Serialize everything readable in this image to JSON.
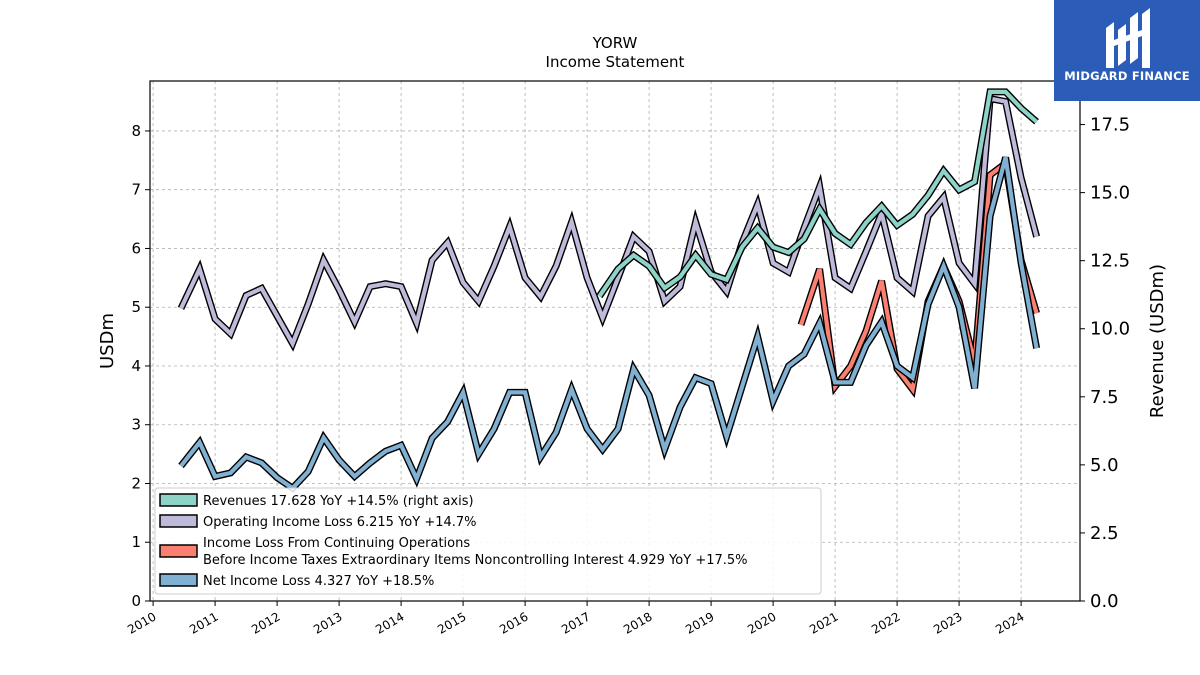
{
  "chart_data": {
    "type": "line",
    "title": "YORW",
    "subtitle": "Income Statement",
    "ylabel": "USDm",
    "ylabel_right": "Revenue (USDm)",
    "ylim": [
      0,
      8.85
    ],
    "ylim_right": [
      0,
      19.1
    ],
    "xlim": [
      2009.95,
      2024.95
    ],
    "x_ticks": [
      "2010",
      "2011",
      "2012",
      "2013",
      "2014",
      "2015",
      "2016",
      "2017",
      "2018",
      "2019",
      "2020",
      "2021",
      "2022",
      "2023",
      "2024"
    ],
    "y_ticks": [
      "0",
      "1",
      "2",
      "3",
      "4",
      "5",
      "6",
      "7",
      "8"
    ],
    "y_ticks_right": [
      "0.0",
      "2.5",
      "5.0",
      "7.5",
      "10.0",
      "12.5",
      "15.0",
      "17.5"
    ],
    "grid": true,
    "legend_position": "lower-left",
    "series": [
      {
        "name": "Revenues",
        "legend": "Revenues  17.628 YoY +14.5% (right axis)",
        "axis": "right",
        "color": "#8dd3c7",
        "points": [
          [
            2017.2,
            11.2
          ],
          [
            2017.5,
            12.2
          ],
          [
            2017.75,
            12.7
          ],
          [
            2018.0,
            12.3
          ],
          [
            2018.25,
            11.5
          ],
          [
            2018.5,
            11.9
          ],
          [
            2018.75,
            12.7
          ],
          [
            2019.0,
            12.0
          ],
          [
            2019.25,
            11.8
          ],
          [
            2019.5,
            13.0
          ],
          [
            2019.75,
            13.7
          ],
          [
            2020.0,
            13.0
          ],
          [
            2020.25,
            12.8
          ],
          [
            2020.5,
            13.3
          ],
          [
            2020.75,
            14.4
          ],
          [
            2021.0,
            13.5
          ],
          [
            2021.25,
            13.1
          ],
          [
            2021.5,
            13.9
          ],
          [
            2021.75,
            14.5
          ],
          [
            2022.0,
            13.8
          ],
          [
            2022.25,
            14.2
          ],
          [
            2022.5,
            14.9
          ],
          [
            2022.75,
            15.8
          ],
          [
            2023.0,
            15.1
          ],
          [
            2023.25,
            15.4
          ],
          [
            2023.5,
            18.7
          ],
          [
            2023.75,
            18.7
          ],
          [
            2024.0,
            18.1
          ],
          [
            2024.25,
            17.6
          ]
        ]
      },
      {
        "name": "Operating Income Loss",
        "legend": "Operating Income Loss  6.215 YoY +14.7%",
        "axis": "left",
        "color": "#bebada",
        "points": [
          [
            2010.45,
            4.98
          ],
          [
            2010.75,
            5.65
          ],
          [
            2011.0,
            4.8
          ],
          [
            2011.25,
            4.55
          ],
          [
            2011.5,
            5.2
          ],
          [
            2011.75,
            5.32
          ],
          [
            2012.0,
            4.85
          ],
          [
            2012.25,
            4.38
          ],
          [
            2012.5,
            5.05
          ],
          [
            2012.75,
            5.8
          ],
          [
            2013.0,
            5.3
          ],
          [
            2013.25,
            4.75
          ],
          [
            2013.5,
            5.35
          ],
          [
            2013.75,
            5.4
          ],
          [
            2014.0,
            5.35
          ],
          [
            2014.25,
            4.73
          ],
          [
            2014.5,
            5.8
          ],
          [
            2014.75,
            6.1
          ],
          [
            2015.0,
            5.42
          ],
          [
            2015.25,
            5.1
          ],
          [
            2015.5,
            5.7
          ],
          [
            2015.75,
            6.37
          ],
          [
            2016.0,
            5.5
          ],
          [
            2016.25,
            5.18
          ],
          [
            2016.5,
            5.7
          ],
          [
            2016.75,
            6.45
          ],
          [
            2017.0,
            5.5
          ],
          [
            2017.25,
            4.82
          ],
          [
            2017.5,
            5.5
          ],
          [
            2017.75,
            6.2
          ],
          [
            2018.0,
            5.95
          ],
          [
            2018.25,
            5.1
          ],
          [
            2018.5,
            5.35
          ],
          [
            2018.75,
            6.45
          ],
          [
            2019.0,
            5.6
          ],
          [
            2019.25,
            5.27
          ],
          [
            2019.5,
            6.1
          ],
          [
            2019.75,
            6.75
          ],
          [
            2020.0,
            5.75
          ],
          [
            2020.25,
            5.6
          ],
          [
            2020.5,
            6.35
          ],
          [
            2020.75,
            7.05
          ],
          [
            2021.0,
            5.5
          ],
          [
            2021.25,
            5.32
          ],
          [
            2021.5,
            5.95
          ],
          [
            2021.75,
            6.6
          ],
          [
            2022.0,
            5.5
          ],
          [
            2022.25,
            5.27
          ],
          [
            2022.5,
            6.55
          ],
          [
            2022.75,
            6.87
          ],
          [
            2023.0,
            5.75
          ],
          [
            2023.25,
            5.4
          ],
          [
            2023.5,
            8.55
          ],
          [
            2023.75,
            8.5
          ],
          [
            2024.0,
            7.2
          ],
          [
            2024.25,
            6.2
          ]
        ]
      },
      {
        "name": "Income Loss From Continuing Operations Before Income Taxes Extraordinary Items Noncontrolling Interest",
        "legend_line1": "Income Loss From Continuing Operations",
        "legend_line2": "Before Income Taxes Extraordinary Items Noncontrolling Interest  4.929 YoY +17.5%",
        "axis": "left",
        "color": "#fb8072",
        "points": [
          [
            2020.45,
            4.7
          ],
          [
            2020.75,
            5.65
          ],
          [
            2021.0,
            3.65
          ],
          [
            2021.25,
            4.0
          ],
          [
            2021.5,
            4.6
          ],
          [
            2021.75,
            5.45
          ],
          [
            2022.0,
            3.95
          ],
          [
            2022.25,
            3.6
          ],
          [
            2022.5,
            5.1
          ],
          [
            2022.75,
            5.7
          ],
          [
            2023.0,
            5.1
          ],
          [
            2023.25,
            4.05
          ],
          [
            2023.5,
            7.25
          ],
          [
            2023.75,
            7.45
          ],
          [
            2024.0,
            5.8
          ],
          [
            2024.25,
            4.9
          ]
        ]
      },
      {
        "name": "Net Income Loss",
        "legend": "Net Income Loss  4.327 YoY +18.5%",
        "axis": "left",
        "color": "#80b1d3",
        "points": [
          [
            2010.45,
            2.3
          ],
          [
            2010.75,
            2.7
          ],
          [
            2011.0,
            2.12
          ],
          [
            2011.25,
            2.18
          ],
          [
            2011.5,
            2.45
          ],
          [
            2011.75,
            2.35
          ],
          [
            2012.0,
            2.1
          ],
          [
            2012.25,
            1.92
          ],
          [
            2012.5,
            2.2
          ],
          [
            2012.75,
            2.78
          ],
          [
            2013.0,
            2.4
          ],
          [
            2013.25,
            2.12
          ],
          [
            2013.5,
            2.35
          ],
          [
            2013.75,
            2.55
          ],
          [
            2014.0,
            2.65
          ],
          [
            2014.25,
            2.08
          ],
          [
            2014.5,
            2.77
          ],
          [
            2014.75,
            3.05
          ],
          [
            2015.0,
            3.55
          ],
          [
            2015.25,
            2.5
          ],
          [
            2015.5,
            2.93
          ],
          [
            2015.75,
            3.55
          ],
          [
            2016.0,
            3.55
          ],
          [
            2016.25,
            2.45
          ],
          [
            2016.5,
            2.87
          ],
          [
            2016.75,
            3.6
          ],
          [
            2017.0,
            2.93
          ],
          [
            2017.25,
            2.58
          ],
          [
            2017.5,
            2.93
          ],
          [
            2017.75,
            3.95
          ],
          [
            2018.0,
            3.5
          ],
          [
            2018.25,
            2.58
          ],
          [
            2018.5,
            3.3
          ],
          [
            2018.75,
            3.8
          ],
          [
            2019.0,
            3.7
          ],
          [
            2019.25,
            2.8
          ],
          [
            2019.5,
            3.65
          ],
          [
            2019.75,
            4.5
          ],
          [
            2020.0,
            3.4
          ],
          [
            2020.25,
            4.0
          ],
          [
            2020.5,
            4.2
          ],
          [
            2020.75,
            4.73
          ],
          [
            2021.0,
            3.72
          ],
          [
            2021.25,
            3.72
          ],
          [
            2021.5,
            4.35
          ],
          [
            2021.75,
            4.75
          ],
          [
            2022.0,
            4.0
          ],
          [
            2022.25,
            3.8
          ],
          [
            2022.5,
            5.05
          ],
          [
            2022.75,
            5.7
          ],
          [
            2023.0,
            5.0
          ],
          [
            2023.25,
            3.62
          ],
          [
            2023.5,
            6.55
          ],
          [
            2023.75,
            7.55
          ],
          [
            2024.0,
            5.75
          ],
          [
            2024.25,
            4.3
          ]
        ]
      }
    ]
  },
  "logo": {
    "text": "MIDGARD FINANCE",
    "background": "#2b5db8"
  }
}
